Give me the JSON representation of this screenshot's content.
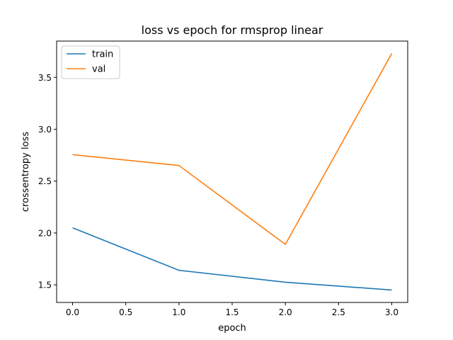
{
  "chart_data": {
    "type": "line",
    "title": "loss vs epoch for rmsprop linear",
    "xlabel": "epoch",
    "ylabel": "crossentropy loss",
    "x": [
      0,
      1,
      2,
      3
    ],
    "xlim": [
      -0.15,
      3.15
    ],
    "ylim": [
      1.33,
      3.85
    ],
    "xticks": [
      0.0,
      0.5,
      1.0,
      1.5,
      2.0,
      2.5,
      3.0
    ],
    "xtick_labels": [
      "0.0",
      "0.5",
      "1.0",
      "1.5",
      "2.0",
      "2.5",
      "3.0"
    ],
    "yticks": [
      1.5,
      2.0,
      2.5,
      3.0,
      3.5
    ],
    "ytick_labels": [
      "1.5",
      "2.0",
      "2.5",
      "3.0",
      "3.5"
    ],
    "grid": false,
    "legend_position": "top-left",
    "series": [
      {
        "name": "train",
        "color": "#1f77b4",
        "values": [
          2.05,
          1.64,
          1.525,
          1.45
        ]
      },
      {
        "name": "val",
        "color": "#ff7f0e",
        "values": [
          2.755,
          2.65,
          1.89,
          3.73
        ]
      }
    ]
  }
}
